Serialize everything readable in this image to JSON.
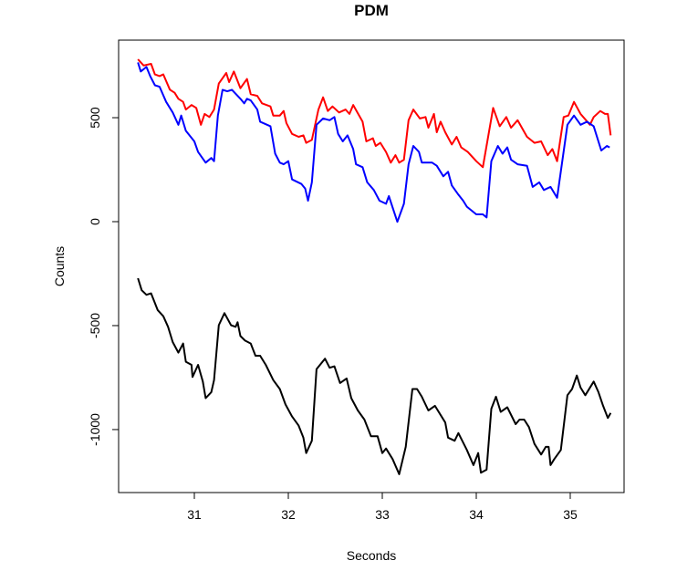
{
  "chart_data": {
    "type": "line",
    "title": "PDM",
    "xlabel": "Seconds",
    "ylabel": "Counts",
    "xlim": [
      30.194,
      35.573
    ],
    "ylim": [
      -1303,
      873
    ],
    "x_ticks": [
      "31",
      "32",
      "33",
      "34",
      "35"
    ],
    "y_ticks": [
      "-1000",
      "-500",
      "0",
      "500"
    ],
    "grid": false,
    "legend": "none",
    "series": [
      {
        "color": "#ff0000",
        "x": [
          30.4,
          30.46,
          30.54,
          30.58,
          30.63,
          30.67,
          30.74,
          30.79,
          30.83,
          30.88,
          30.91,
          30.97,
          31.02,
          31.07,
          31.11,
          31.16,
          31.21,
          31.26,
          31.34,
          31.37,
          31.42,
          31.49,
          31.56,
          31.6,
          31.67,
          31.72,
          31.81,
          31.84,
          31.91,
          31.95,
          31.98,
          32.04,
          32.11,
          32.16,
          32.19,
          32.25,
          32.32,
          32.37,
          32.42,
          32.47,
          32.54,
          32.61,
          32.65,
          32.69,
          32.79,
          32.83,
          32.9,
          32.93,
          32.98,
          33.04,
          33.09,
          33.14,
          33.18,
          33.23,
          33.28,
          33.33,
          33.4,
          33.46,
          33.49,
          33.55,
          33.58,
          33.62,
          33.67,
          33.74,
          33.79,
          33.84,
          33.91,
          34.0,
          34.07,
          34.12,
          34.18,
          34.25,
          34.32,
          34.37,
          34.44,
          34.54,
          34.62,
          34.69,
          34.76,
          34.81,
          34.86,
          34.93,
          34.98,
          35.04,
          35.11,
          35.21,
          35.25,
          35.32,
          35.37,
          35.4,
          35.43
        ],
        "y": [
          781,
          751,
          759,
          708,
          700,
          708,
          635,
          620,
          591,
          576,
          539,
          561,
          547,
          466,
          518,
          503,
          539,
          664,
          715,
          671,
          722,
          642,
          686,
          613,
          605,
          569,
          554,
          510,
          510,
          532,
          474,
          422,
          408,
          415,
          379,
          393,
          539,
          598,
          532,
          554,
          525,
          539,
          518,
          561,
          481,
          386,
          401,
          364,
          379,
          335,
          284,
          320,
          284,
          298,
          488,
          539,
          496,
          503,
          452,
          518,
          430,
          481,
          430,
          371,
          408,
          357,
          335,
          291,
          262,
          393,
          547,
          459,
          503,
          452,
          488,
          408,
          379,
          386,
          320,
          349,
          291,
          503,
          510,
          576,
          518,
          466,
          503,
          532,
          518,
          518,
          415
        ]
      },
      {
        "color": "#0000ff",
        "x": [
          30.4,
          30.43,
          30.49,
          30.53,
          30.58,
          30.63,
          30.7,
          30.77,
          30.83,
          30.86,
          30.91,
          31.0,
          31.04,
          31.12,
          31.18,
          31.21,
          31.25,
          31.3,
          31.35,
          31.4,
          31.49,
          31.53,
          31.56,
          31.6,
          31.67,
          31.7,
          31.81,
          31.86,
          31.91,
          31.95,
          32.0,
          32.04,
          32.14,
          32.18,
          32.21,
          32.25,
          32.3,
          32.37,
          32.44,
          32.49,
          32.53,
          32.58,
          32.63,
          32.69,
          32.72,
          32.79,
          32.84,
          32.91,
          32.97,
          33.04,
          33.07,
          33.16,
          33.23,
          33.28,
          33.33,
          33.39,
          33.42,
          33.53,
          33.58,
          33.65,
          33.7,
          33.74,
          33.81,
          33.86,
          33.9,
          34.0,
          34.07,
          34.11,
          34.16,
          34.23,
          34.28,
          34.33,
          34.37,
          34.44,
          34.54,
          34.6,
          34.67,
          34.72,
          34.79,
          34.86,
          34.97,
          35.04,
          35.11,
          35.18,
          35.25,
          35.33,
          35.39,
          35.42
        ],
        "y": [
          766,
          722,
          744,
          700,
          656,
          649,
          576,
          525,
          466,
          510,
          437,
          386,
          335,
          284,
          306,
          291,
          510,
          634,
          627,
          634,
          591,
          569,
          591,
          583,
          539,
          481,
          459,
          327,
          284,
          276,
          291,
          203,
          181,
          159,
          101,
          189,
          466,
          496,
          488,
          503,
          422,
          386,
          415,
          349,
          276,
          262,
          189,
          152,
          101,
          86,
          123,
          -1,
          86,
          276,
          364,
          335,
          284,
          284,
          269,
          218,
          240,
          174,
          130,
          101,
          72,
          35,
          35,
          20,
          291,
          364,
          327,
          357,
          298,
          276,
          269,
          167,
          189,
          152,
          167,
          115,
          466,
          510,
          466,
          481,
          459,
          342,
          364,
          357
        ]
      },
      {
        "color": "#000000",
        "x": [
          30.4,
          30.44,
          30.49,
          30.54,
          30.61,
          30.67,
          30.72,
          30.77,
          30.83,
          30.88,
          30.91,
          30.97,
          30.98,
          31.04,
          31.09,
          31.12,
          31.18,
          31.21,
          31.26,
          31.32,
          31.39,
          31.44,
          31.46,
          31.49,
          31.54,
          31.6,
          31.65,
          31.7,
          31.76,
          31.84,
          31.91,
          31.97,
          32.04,
          32.11,
          32.16,
          32.19,
          32.25,
          32.3,
          32.39,
          32.44,
          32.49,
          32.55,
          32.62,
          32.67,
          32.74,
          32.81,
          32.88,
          32.95,
          33.0,
          33.04,
          33.11,
          33.18,
          33.25,
          33.32,
          33.37,
          33.42,
          33.49,
          33.56,
          33.67,
          33.7,
          33.77,
          33.81,
          33.9,
          33.97,
          34.02,
          34.05,
          34.11,
          34.16,
          34.21,
          34.26,
          34.33,
          34.42,
          34.46,
          34.51,
          34.56,
          34.62,
          34.69,
          34.74,
          34.77,
          34.79,
          34.83,
          34.9,
          34.97,
          35.02,
          35.07,
          35.11,
          35.16,
          35.25,
          35.3,
          35.35,
          35.4,
          35.43
        ],
        "y": [
          -272,
          -330,
          -352,
          -345,
          -425,
          -455,
          -506,
          -579,
          -630,
          -586,
          -674,
          -689,
          -747,
          -689,
          -769,
          -849,
          -820,
          -762,
          -498,
          -440,
          -498,
          -506,
          -484,
          -550,
          -572,
          -586,
          -645,
          -645,
          -689,
          -762,
          -805,
          -879,
          -937,
          -981,
          -1039,
          -1113,
          -1054,
          -710,
          -659,
          -703,
          -696,
          -776,
          -754,
          -849,
          -908,
          -952,
          -1032,
          -1032,
          -1113,
          -1091,
          -1142,
          -1215,
          -1083,
          -805,
          -805,
          -842,
          -908,
          -886,
          -966,
          -1039,
          -1054,
          -1017,
          -1098,
          -1171,
          -1113,
          -1208,
          -1193,
          -900,
          -842,
          -915,
          -893,
          -974,
          -952,
          -952,
          -988,
          -1069,
          -1120,
          -1083,
          -1083,
          -1171,
          -1142,
          -1098,
          -835,
          -805,
          -740,
          -798,
          -835,
          -769,
          -820,
          -886,
          -944,
          -920
        ]
      }
    ]
  }
}
